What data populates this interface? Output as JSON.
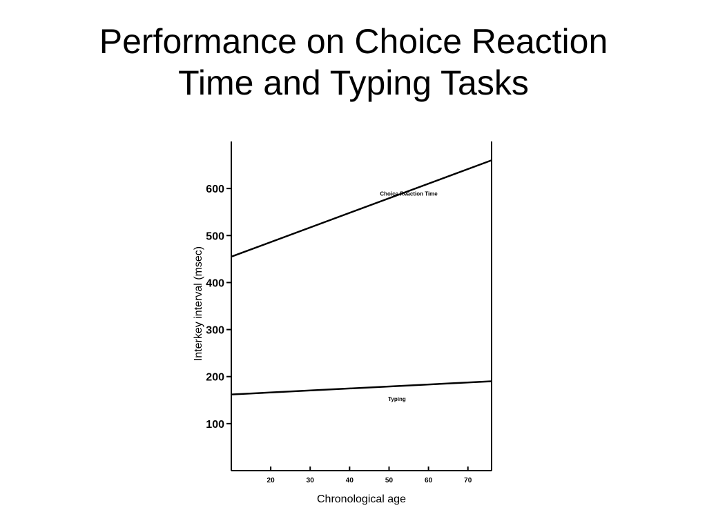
{
  "slide": {
    "title_line1": "Performance on Choice Reaction",
    "title_line2": "Time and Typing Tasks"
  },
  "chart_data": {
    "type": "line",
    "xlabel": "Chronological age",
    "ylabel": "Interkey interval (msec)",
    "xlim": [
      10,
      76
    ],
    "ylim": [
      0,
      700
    ],
    "x_ticks": [
      20,
      30,
      40,
      50,
      60,
      70
    ],
    "y_ticks": [
      100,
      200,
      300,
      400,
      500,
      600
    ],
    "grid": false,
    "series": [
      {
        "name": "Choice Reaction Time",
        "x": [
          10,
          76
        ],
        "y": [
          455,
          660
        ],
        "label_at": [
          55,
          585
        ]
      },
      {
        "name": "Typing",
        "x": [
          10,
          76
        ],
        "y": [
          162,
          190
        ],
        "label_at": [
          52,
          148
        ]
      }
    ],
    "colors": {
      "line": "#000000",
      "axis": "#000000"
    }
  }
}
